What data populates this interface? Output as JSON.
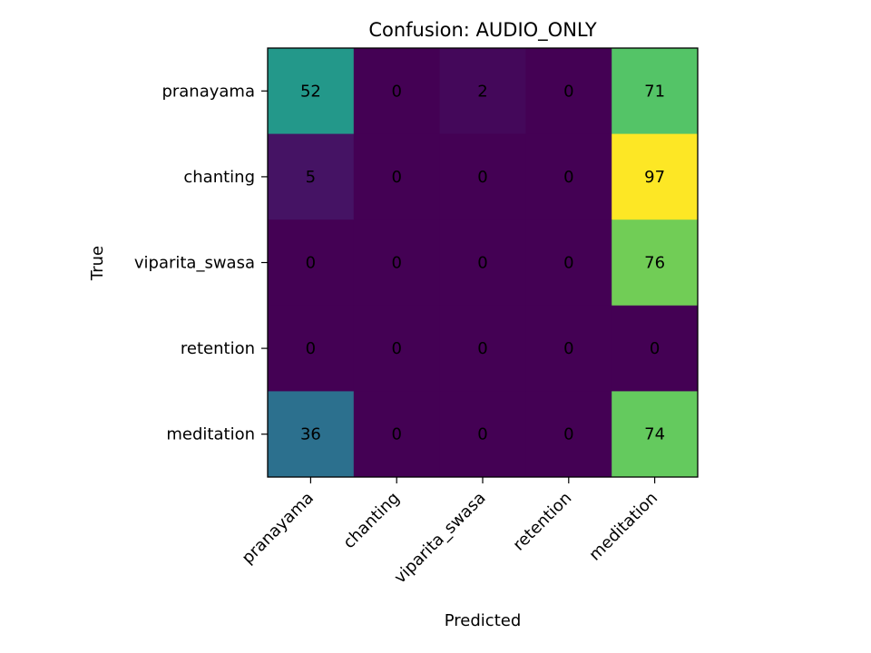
{
  "chart_data": {
    "type": "heatmap",
    "title": "Confusion: AUDIO_ONLY",
    "xlabel": "Predicted",
    "ylabel": "True",
    "x_categories": [
      "pranayama",
      "chanting",
      "viparita_swasa",
      "retention",
      "meditation"
    ],
    "y_categories": [
      "pranayama",
      "chanting",
      "viparita_swasa",
      "retention",
      "meditation"
    ],
    "values": [
      [
        52,
        0,
        2,
        0,
        71
      ],
      [
        5,
        0,
        0,
        0,
        97
      ],
      [
        0,
        0,
        0,
        0,
        76
      ],
      [
        0,
        0,
        0,
        0,
        0
      ],
      [
        36,
        0,
        0,
        0,
        74
      ]
    ],
    "colormap": "viridis",
    "vmin": 0,
    "vmax": 97
  }
}
